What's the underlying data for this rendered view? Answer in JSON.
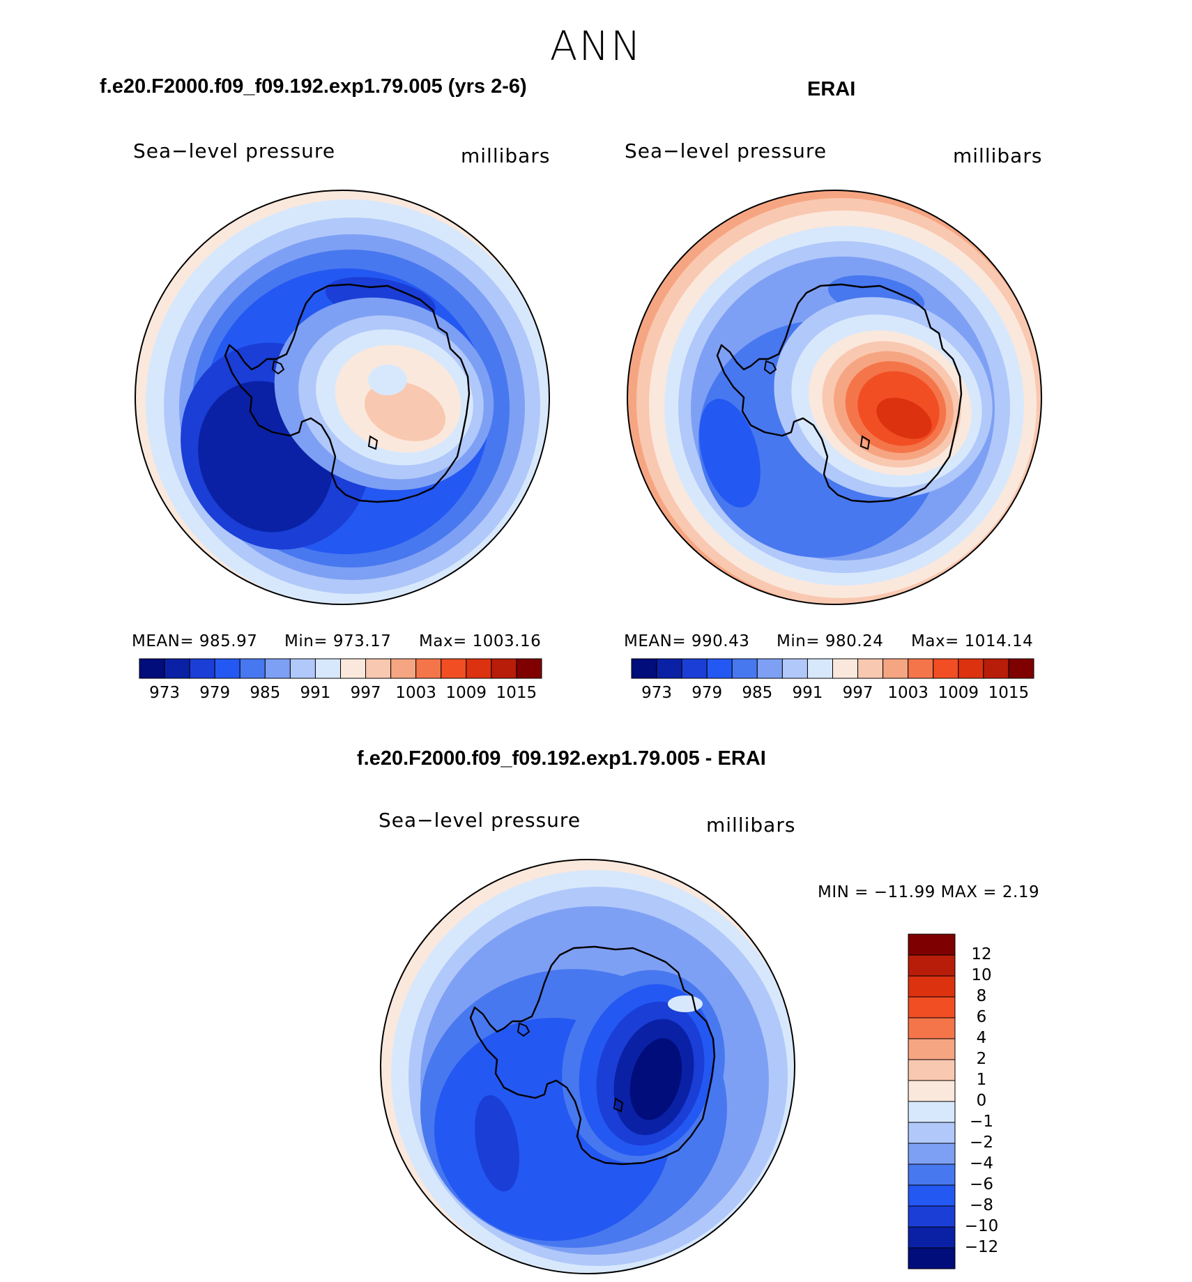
{
  "title": "ANN",
  "colors": {
    "abs": [
      "#000d7a",
      "#0a21a6",
      "#1a3ed6",
      "#2458f2",
      "#4878ef",
      "#7ea0f4",
      "#b1c8fa",
      "#d8e8fc",
      "#fbe8dc",
      "#f9c8b0",
      "#f6a582",
      "#f5754a",
      "#f14e24",
      "#dc3210",
      "#b81d0a",
      "#7f0000"
    ],
    "diff": [
      "#000d7a",
      "#0a21a6",
      "#1a3ed6",
      "#2458f2",
      "#4878ef",
      "#7ea0f4",
      "#b1c8fa",
      "#d8e8fc",
      "#fbe8dc",
      "#f9c8b0",
      "#f6a582",
      "#f5754a",
      "#f14e24",
      "#dc3210",
      "#b81d0a",
      "#7f0000"
    ],
    "coast": "#000000"
  },
  "panels": [
    {
      "case_title": "f.e20.F2000.f09_f09.192.exp1.79.005 (yrs 2-6)",
      "variable": "Sea−level pressure",
      "units": "millibars",
      "stats": {
        "mean": "MEAN=  985.97",
        "min": "Min=  973.17",
        "max": "Max=  1003.16"
      },
      "colorbar_ticks": [
        "973",
        "979",
        "985",
        "991",
        "997",
        "1003",
        "1009",
        "1015"
      ]
    },
    {
      "case_title": "ERAI",
      "variable": "Sea−level pressure",
      "units": "millibars",
      "stats": {
        "mean": "MEAN=  990.43",
        "min": "Min=  980.24",
        "max": "Max=  1014.14"
      },
      "colorbar_ticks": [
        "973",
        "979",
        "985",
        "991",
        "997",
        "1003",
        "1009",
        "1015"
      ]
    }
  ],
  "difference": {
    "case_title": "f.e20.F2000.f09_f09.192.exp1.79.005 - ERAI",
    "variable": "Sea−level pressure",
    "units": "millibars",
    "minmax": "MIN  =  −11.99  MAX  =     2.19",
    "colorbar_ticks": [
      "12",
      "10",
      "8",
      "6",
      "4",
      "2",
      "1",
      "0",
      "−1",
      "−2",
      "−4",
      "−6",
      "−8",
      "−10",
      "−12"
    ]
  }
}
